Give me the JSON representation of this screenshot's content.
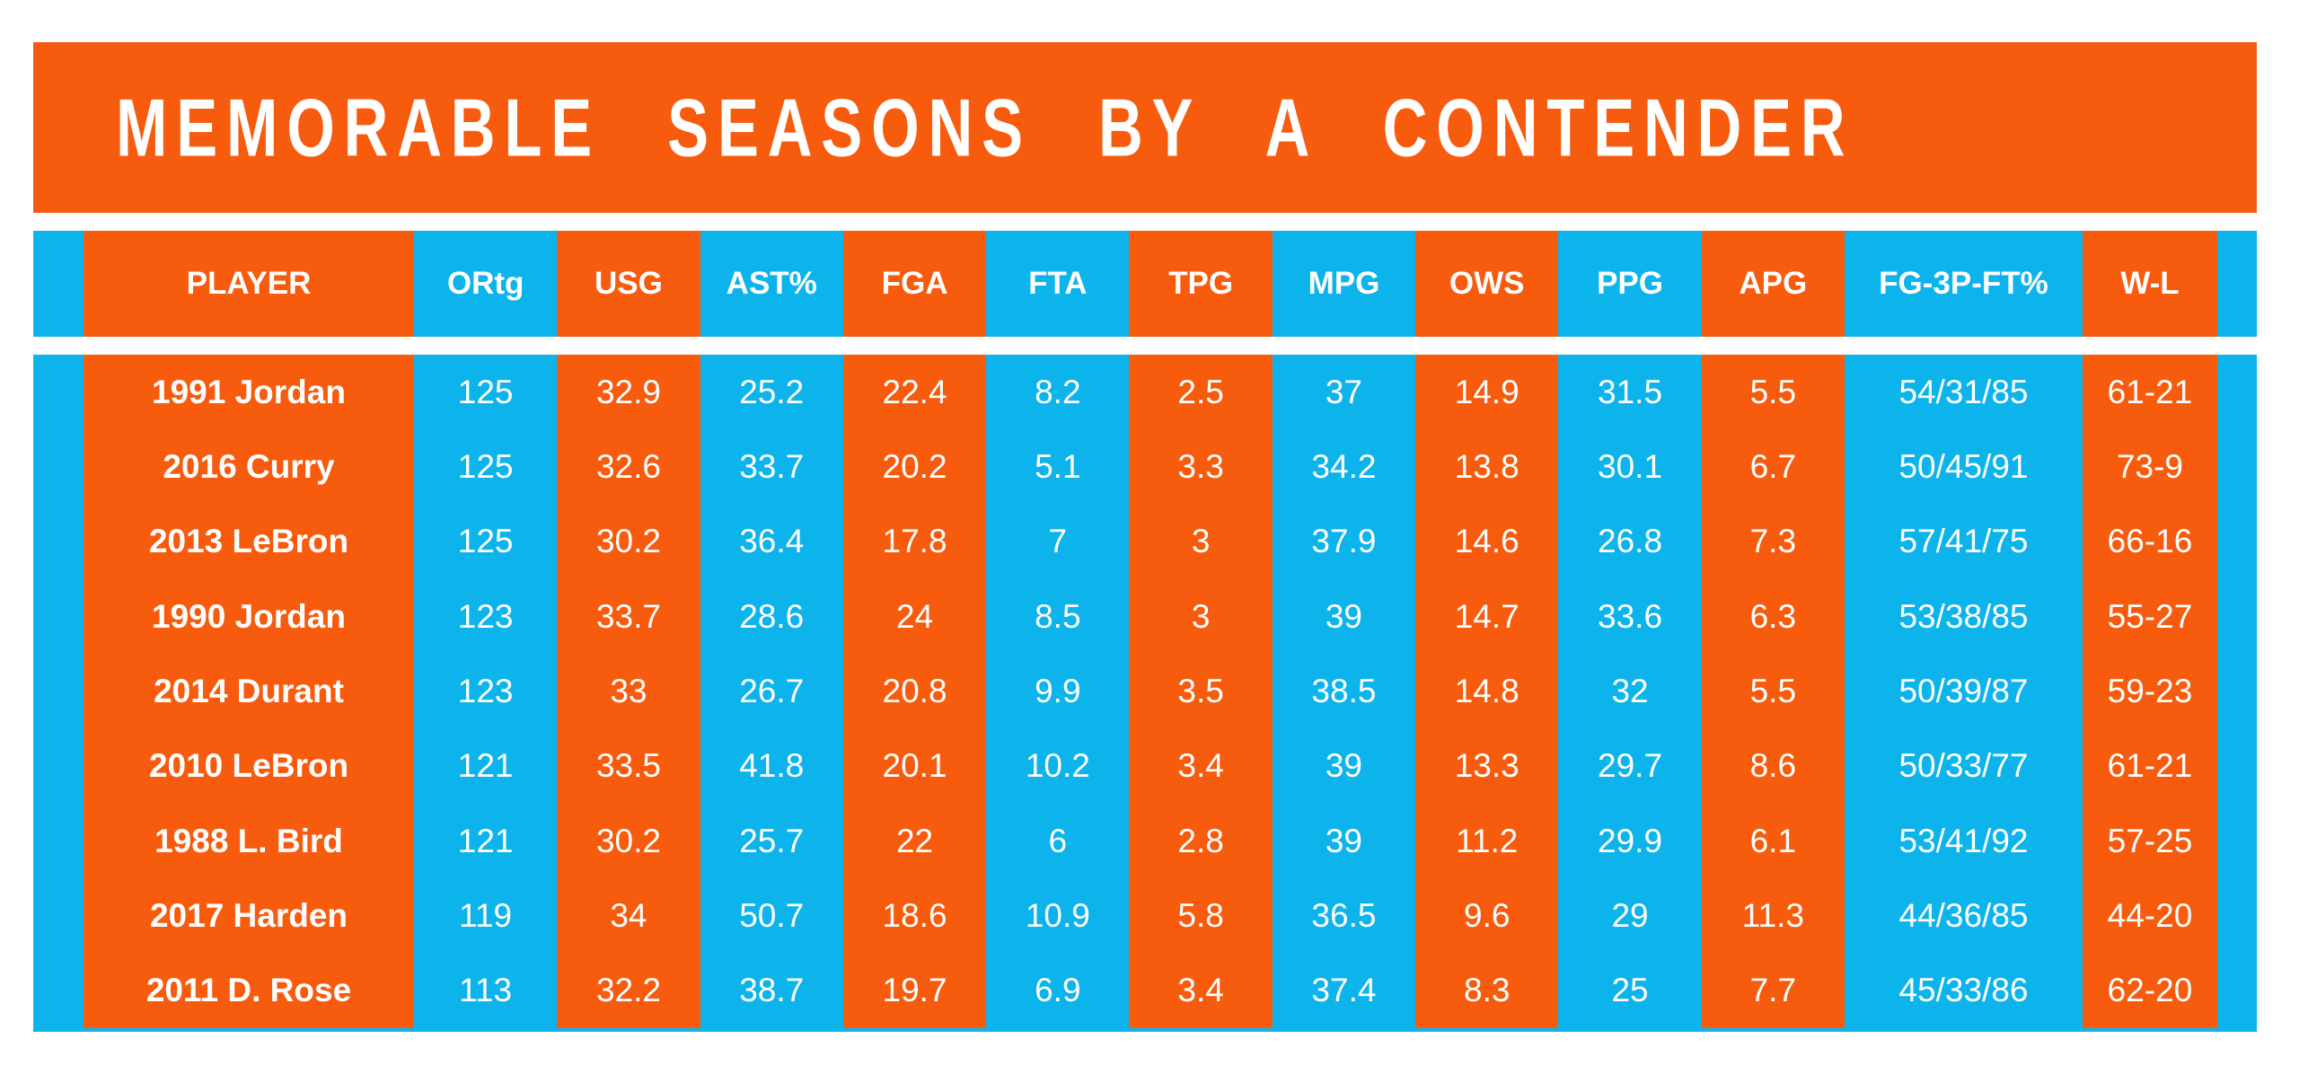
{
  "title": "MEMORABLE SEASONS BY A CONTENDER",
  "colors": {
    "orange": "#F75B0D",
    "cyan": "#0CB4EB",
    "text": "#FFFFFF",
    "background": "#FFFFFF"
  },
  "chart_data": {
    "type": "table",
    "title": "MEMORABLE SEASONS BY A CONTENDER",
    "columns": [
      "PLAYER",
      "ORtg",
      "USG",
      "AST%",
      "FGA",
      "FTA",
      "TPG",
      "MPG",
      "OWS",
      "PPG",
      "APG",
      "FG-3P-FT%",
      "W-L"
    ],
    "column_colors": [
      "orange",
      "cyan",
      "orange",
      "cyan",
      "orange",
      "cyan",
      "orange",
      "cyan",
      "orange",
      "cyan",
      "orange",
      "cyan",
      "orange"
    ],
    "edge_strip_color": "cyan",
    "rows": [
      [
        "1991 Jordan",
        "125",
        "32.9",
        "25.2",
        "22.4",
        "8.2",
        "2.5",
        "37",
        "14.9",
        "31.5",
        "5.5",
        "54/31/85",
        "61-21"
      ],
      [
        "2016 Curry",
        "125",
        "32.6",
        "33.7",
        "20.2",
        "5.1",
        "3.3",
        "34.2",
        "13.8",
        "30.1",
        "6.7",
        "50/45/91",
        "73-9"
      ],
      [
        "2013 LeBron",
        "125",
        "30.2",
        "36.4",
        "17.8",
        "7",
        "3",
        "37.9",
        "14.6",
        "26.8",
        "7.3",
        "57/41/75",
        "66-16"
      ],
      [
        "1990 Jordan",
        "123",
        "33.7",
        "28.6",
        "24",
        "8.5",
        "3",
        "39",
        "14.7",
        "33.6",
        "6.3",
        "53/38/85",
        "55-27"
      ],
      [
        "2014 Durant",
        "123",
        "33",
        "26.7",
        "20.8",
        "9.9",
        "3.5",
        "38.5",
        "14.8",
        "32",
        "5.5",
        "50/39/87",
        "59-23"
      ],
      [
        "2010 LeBron",
        "121",
        "33.5",
        "41.8",
        "20.1",
        "10.2",
        "3.4",
        "39",
        "13.3",
        "29.7",
        "8.6",
        "50/33/77",
        "61-21"
      ],
      [
        "1988 L. Bird",
        "121",
        "30.2",
        "25.7",
        "22",
        "6",
        "2.8",
        "39",
        "11.2",
        "29.9",
        "6.1",
        "53/41/92",
        "57-25"
      ],
      [
        "2017 Harden",
        "119",
        "34",
        "50.7",
        "18.6",
        "10.9",
        "5.8",
        "36.5",
        "9.6",
        "29",
        "11.3",
        "44/36/85",
        "44-20"
      ],
      [
        "2011 D. Rose",
        "113",
        "32.2",
        "38.7",
        "19.7",
        "6.9",
        "3.4",
        "37.4",
        "8.3",
        "25",
        "7.7",
        "45/33/86",
        "62-20"
      ]
    ]
  }
}
